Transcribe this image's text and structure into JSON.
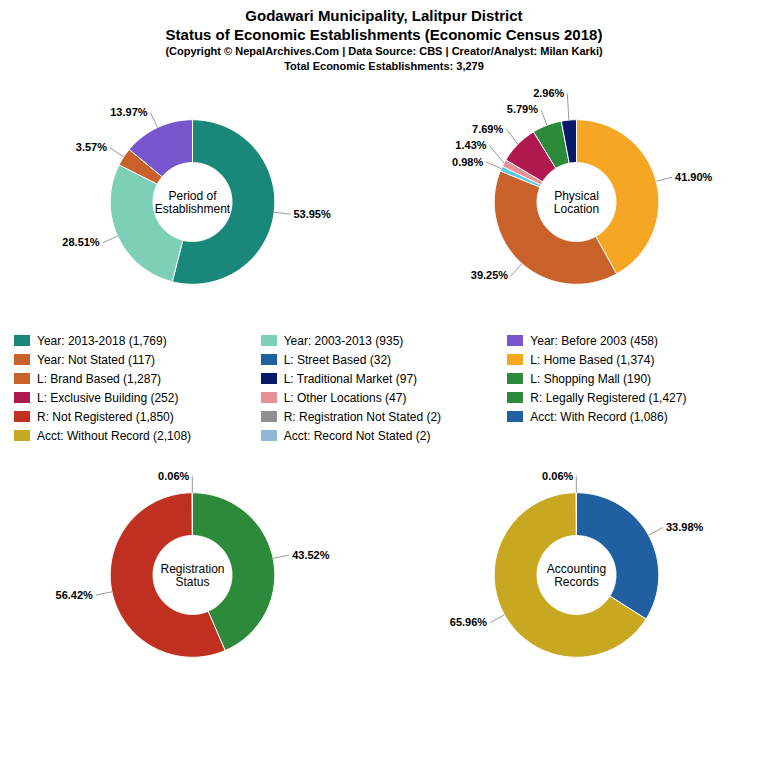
{
  "title": "Godawari Municipality, Lalitpur District\nStatus of Economic Establishments (Economic Census 2018)",
  "subtitle": "(Copyright © NepalArchives.Com | Data Source: CBS | Creator/Analyst: Milan Karki)\nTotal Economic Establishments: 3,279",
  "chart_data": [
    {
      "type": "pie",
      "title": "Period of\nEstablishment",
      "values": [
        53.95,
        28.51,
        3.57,
        13.97
      ],
      "value_labels": [
        "53.95%",
        "28.51%",
        "3.57%",
        "13.97%"
      ],
      "colors": [
        "#1a8878",
        "#7ecfb8",
        "#c8622a",
        "#7755cc"
      ],
      "data_labels": true
    },
    {
      "type": "pie",
      "title": "Physical\nLocation",
      "values": [
        41.9,
        39.25,
        0.98,
        1.43,
        7.69,
        5.79,
        2.96
      ],
      "value_labels": [
        "41.90%",
        "39.25%",
        "0.98%",
        "1.43%",
        "7.69%",
        "5.79%",
        "2.96%"
      ],
      "colors": [
        "#f5a623",
        "#c8622a",
        "#5bc8e8",
        "#e8909a",
        "#b01850",
        "#2d8a3a",
        "#0a1a6a"
      ],
      "data_labels": true
    },
    {
      "type": "pie",
      "title": "Registration\nStatus",
      "values": [
        43.52,
        56.42,
        0.06
      ],
      "value_labels": [
        "43.52%",
        "56.42%",
        "0.06%"
      ],
      "colors": [
        "#2d8a3a",
        "#c03020",
        "#909090"
      ],
      "data_labels": true
    },
    {
      "type": "pie",
      "title": "Accounting\nRecords",
      "values": [
        33.98,
        65.96,
        0.06
      ],
      "value_labels": [
        "33.98%",
        "65.96%",
        "0.06%"
      ],
      "colors": [
        "#2060a0",
        "#c8a820",
        "#90b8d8"
      ],
      "data_labels": true
    }
  ],
  "legend_items": [
    [
      {
        "label": "Year: 2013-2018 (1,769)",
        "color": "#1a8878"
      },
      {
        "label": "Year: Not Stated (117)",
        "color": "#c8622a"
      },
      {
        "label": "L: Brand Based (1,287)",
        "color": "#c8622a"
      },
      {
        "label": "L: Exclusive Building (252)",
        "color": "#b01850"
      },
      {
        "label": "R: Not Registered (1,850)",
        "color": "#c03020"
      },
      {
        "label": "Acct: Without Record (2,108)",
        "color": "#c8a820"
      }
    ],
    [
      {
        "label": "Year: 2003-2013 (935)",
        "color": "#7ecfb8"
      },
      {
        "label": "L: Street Based (32)",
        "color": "#2060a0"
      },
      {
        "label": "L: Traditional Market (97)",
        "color": "#0a1a6a"
      },
      {
        "label": "L: Other Locations (47)",
        "color": "#e8909a"
      },
      {
        "label": "R: Registration Not Stated (2)",
        "color": "#909090"
      },
      {
        "label": "Acct: Record Not Stated (2)",
        "color": "#90b8d8"
      }
    ],
    [
      {
        "label": "Year: Before 2003 (458)",
        "color": "#7755cc"
      },
      {
        "label": "L: Home Based (1,374)",
        "color": "#f5a623"
      },
      {
        "label": "L: Shopping Mall (190)",
        "color": "#2d8a3a"
      },
      {
        "label": "R: Legally Registered (1,427)",
        "color": "#2d8a3a"
      },
      {
        "label": "Acct: With Record (1,086)",
        "color": "#2060a0"
      }
    ]
  ]
}
